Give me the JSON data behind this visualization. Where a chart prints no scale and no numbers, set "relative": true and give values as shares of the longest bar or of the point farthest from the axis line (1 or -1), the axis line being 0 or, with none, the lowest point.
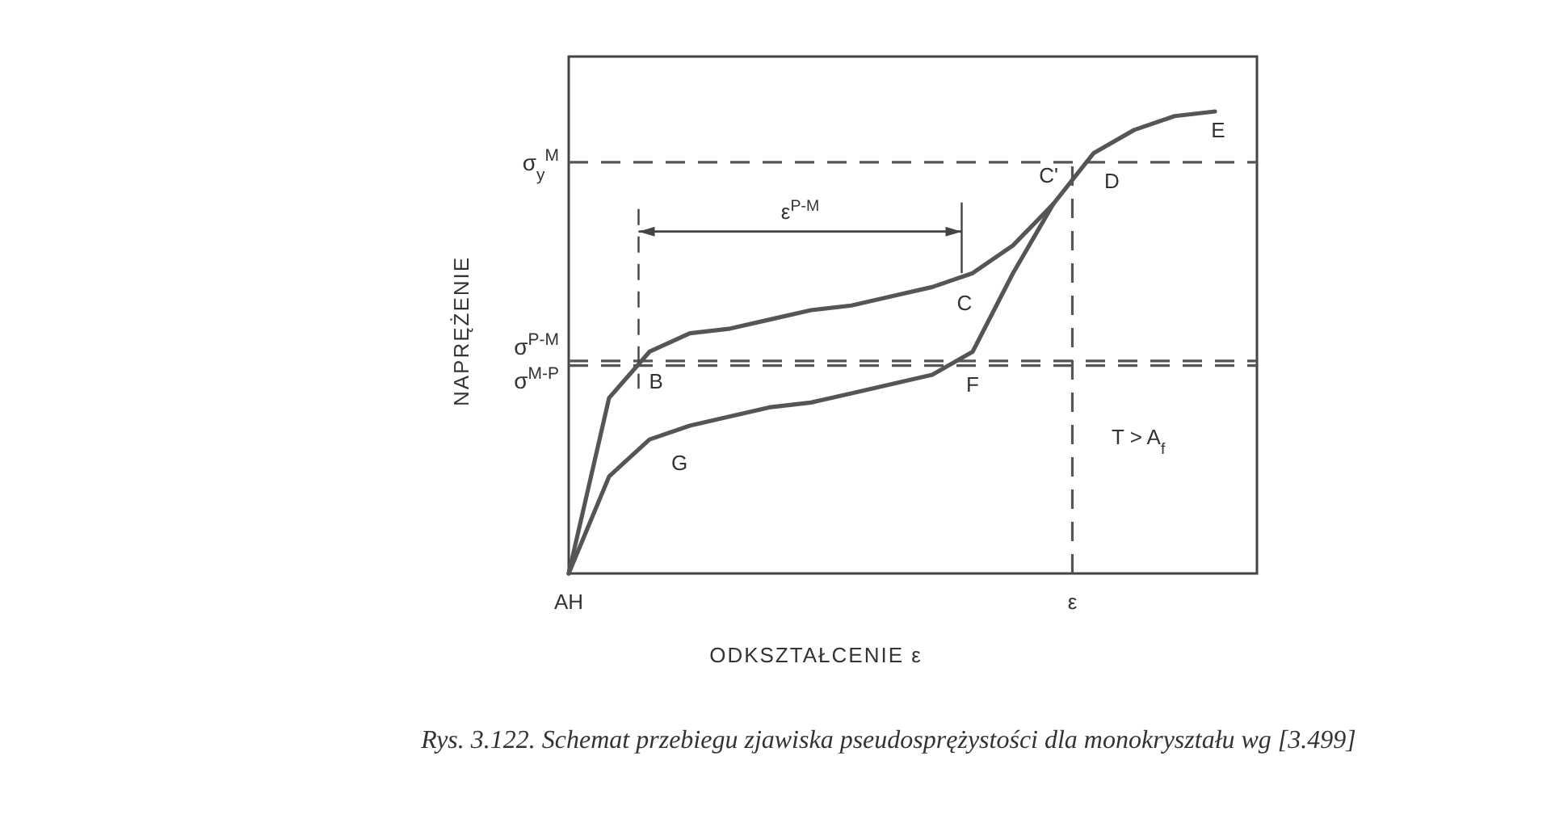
{
  "chart_data": {
    "type": "line",
    "relative": true,
    "marker": "none",
    "line_style": "solid",
    "xlabel": "ODKSZTAŁCENIE  ε",
    "ylabel": "NAPRĘŻENIE",
    "categories": [
      null,
      null,
      null,
      null,
      null,
      null,
      null,
      null,
      null,
      null,
      null,
      null,
      null,
      null,
      null,
      null,
      null
    ],
    "series": [
      {
        "color": "#555555",
        "values": [
          0,
          0.38,
          0.48,
          0.52,
          0.53,
          0.55,
          0.57,
          0.58,
          0.6,
          0.62,
          0.65,
          0.71,
          0.8,
          0.91,
          0.96,
          0.99,
          1.0
        ]
      },
      {
        "color": "#555555",
        "values": [
          0,
          0.21,
          0.29,
          0.32,
          0.34,
          0.36,
          0.37,
          0.39,
          0.41,
          0.43,
          0.48,
          0.65,
          0.8,
          null,
          null,
          null,
          null
        ]
      }
    ],
    "ref_lines": [
      {
        "axis": "y",
        "value": 0.89,
        "label": "σ$_{y}$$^{M}$",
        "line_style": "dashed"
      },
      {
        "axis": "y",
        "value": 0.46,
        "label": "σ$^{P-M}$",
        "line_style": "dashed"
      },
      {
        "axis": "y",
        "value": 0.45,
        "label": "σ$^{M-P}$",
        "line_style": "dashed"
      }
    ],
    "annotations": [
      "AH",
      "B",
      "C",
      "C'",
      "D",
      "E",
      "F",
      "G",
      "ε$^{P-M}$",
      "ε",
      "T > A$_{f}$",
      "Rys. 3.122. Schemat przebiegu zjawiska pseudosprężystości dla monokryształu wg [3.499]"
    ]
  }
}
